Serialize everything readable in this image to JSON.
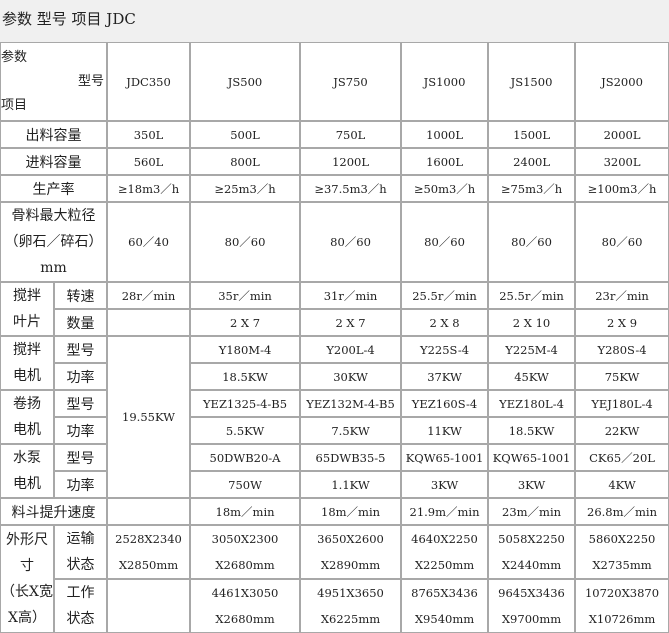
{
  "title": "参数 型号 项目 JDC",
  "header": {
    "corner_top": "参数",
    "corner_mid": "型号",
    "corner_bottom": "项目",
    "models": [
      "JDC350",
      "JS500",
      "JS750",
      "JS1000",
      "JS1500",
      "JS2000"
    ]
  },
  "discharge": {
    "label": "出料容量",
    "values": [
      "350L",
      "500L",
      "750L",
      "1000L",
      "1500L",
      "2000L"
    ]
  },
  "feed": {
    "label": "进料容量",
    "values": [
      "560L",
      "800L",
      "1200L",
      "1600L",
      "2400L",
      "3200L"
    ]
  },
  "productivity": {
    "label": "生产率",
    "values": [
      "≥18m3／h",
      "≥25m3／h",
      "≥37.5m3／h",
      "≥50m3／h",
      "≥75m3／h",
      "≥100m3／h"
    ]
  },
  "aggregate": {
    "label_1": "骨料最大粒径",
    "label_2": "（卵石／碎石）",
    "label_3": "mm",
    "values": [
      "60／40",
      "80／60",
      "80／60",
      "80／60",
      "80／60",
      "80／60"
    ]
  },
  "blade": {
    "label_1": "搅拌",
    "label_2": "叶片",
    "speed_label": "转速",
    "speed": [
      "28r／min",
      "35r／min",
      "31r／min",
      "25.5r／min",
      "25.5r／min",
      "23r／min"
    ],
    "count_label": "数量",
    "count": [
      "",
      "2 X 7",
      "2 X 7",
      "2 X 8",
      "2 X 10",
      "2 X 9"
    ]
  },
  "jdc_motor_total": "19.55KW",
  "mix_motor": {
    "label_1": "搅拌",
    "label_2": "电机",
    "model_label": "型号",
    "models": [
      "Y180M-4",
      "Y200L-4",
      "Y225S-4",
      "Y225M-4",
      "Y280S-4"
    ],
    "power_label": "功率",
    "powers": [
      "18.5KW",
      "30KW",
      "37KW",
      "45KW",
      "75KW"
    ]
  },
  "hoist_motor": {
    "label_1": "卷扬",
    "label_2": "电机",
    "model_label": "型号",
    "models": [
      "YEZ1325-4-B5",
      "YEZ132M-4-B5",
      "YEZ160S-4",
      "YEZ180L-4",
      "YEJ180L-4"
    ],
    "power_label": "功率",
    "powers": [
      "5.5KW",
      "7.5KW",
      "11KW",
      "18.5KW",
      "22KW"
    ]
  },
  "pump_motor": {
    "label_1": "水泵",
    "label_2": "电机",
    "model_label": "型号",
    "models": [
      "50DWB20-A",
      "65DWB35-5",
      "KQW65-1001",
      "KQW65-1001",
      "CK65／20L"
    ],
    "power_label": "功率",
    "powers": [
      "750W",
      "1.1KW",
      "3KW",
      "3KW",
      "4KW"
    ]
  },
  "hopper": {
    "label": "料斗提升速度",
    "values": [
      "",
      "18m／min",
      "18m／min",
      "21.9m／min",
      "23m／min",
      "26.8m／min"
    ]
  },
  "dimensions": {
    "label_1": "外形尺",
    "label_2": "寸",
    "label_3": "（长X宽",
    "label_4": "X高）",
    "transport_label_1": "运输",
    "transport_label_2": "状态",
    "transport": [
      [
        "2528X2340",
        "X2850mm"
      ],
      [
        "3050X2300",
        "X2680mm"
      ],
      [
        "3650X2600",
        "X2890mm"
      ],
      [
        "4640X2250",
        "X2250mm"
      ],
      [
        "5058X2250",
        "X2440mm"
      ],
      [
        "5860X2250",
        "X2735mm"
      ]
    ],
    "working_label_1": "工作",
    "working_label_2": "状态",
    "working": [
      [
        "",
        ""
      ],
      [
        "4461X3050",
        "X2680mm"
      ],
      [
        "4951X3650",
        "X6225mm"
      ],
      [
        "8765X3436",
        "X9540mm"
      ],
      [
        "9645X3436",
        "X9700mm"
      ],
      [
        "10720X3870",
        "X10726mm"
      ]
    ]
  }
}
